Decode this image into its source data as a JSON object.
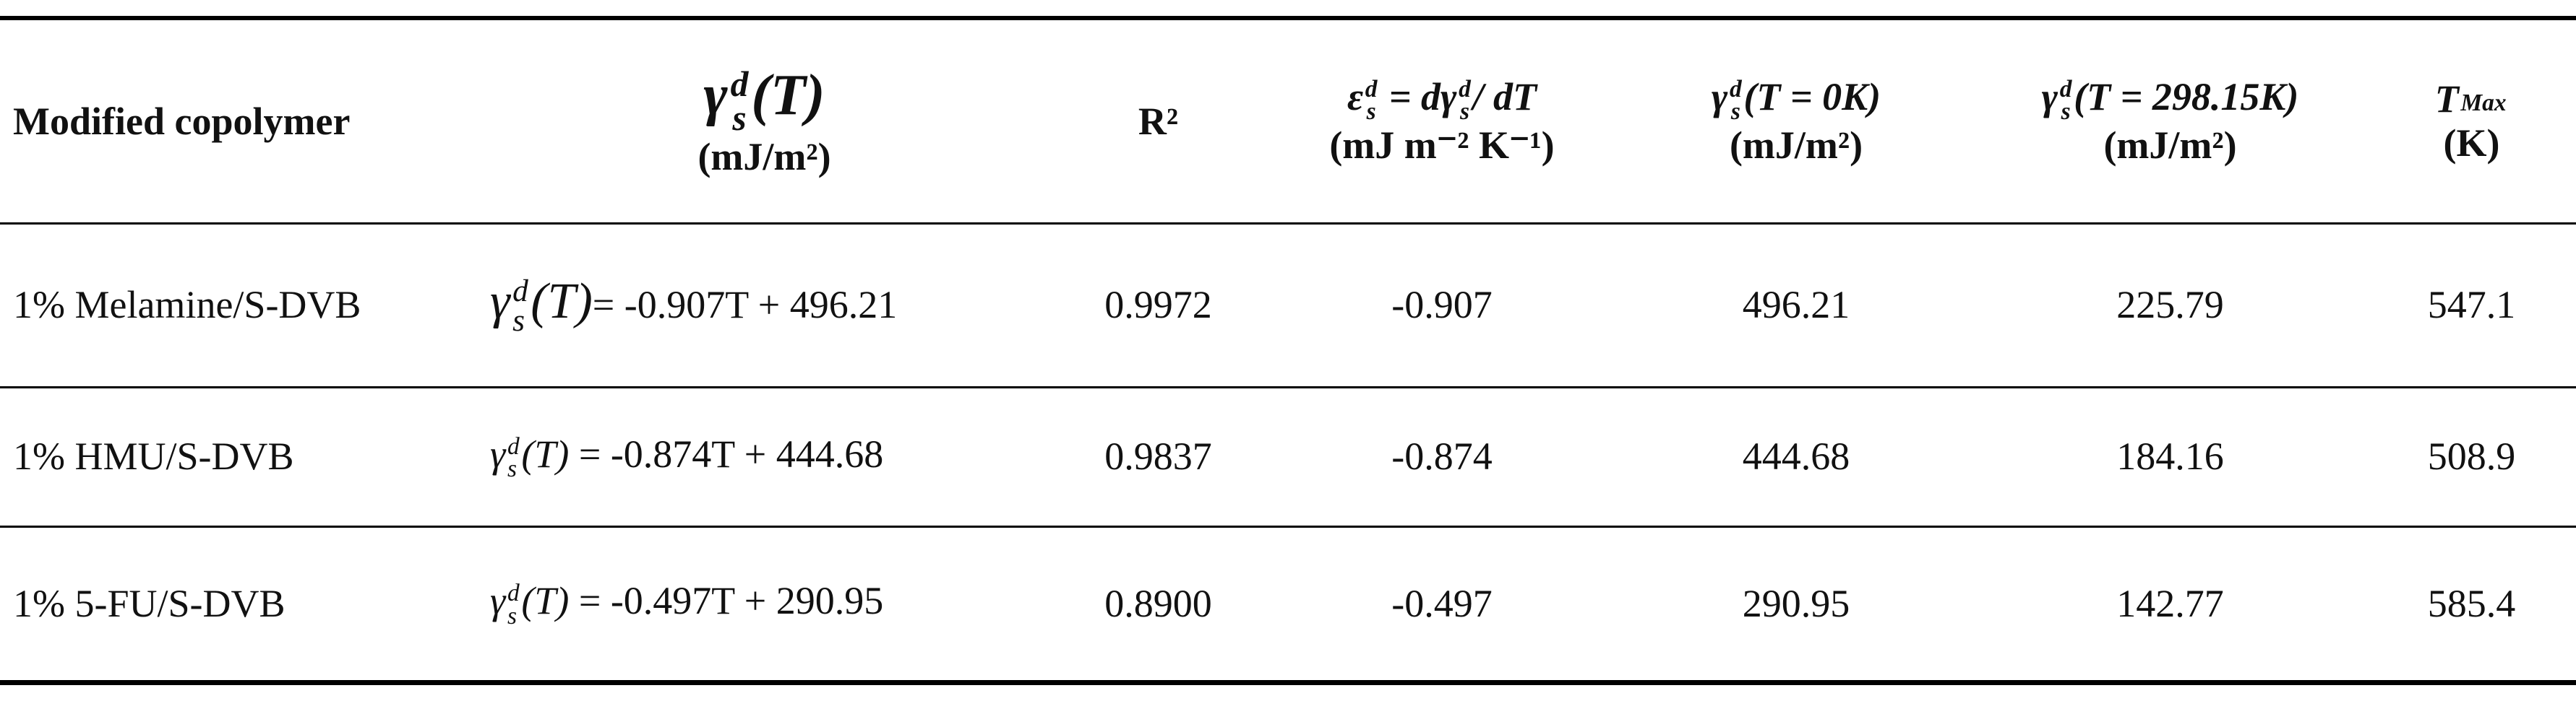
{
  "table": {
    "header": [
      {
        "text": "Modified copolymer"
      },
      {
        "symbol": "γ",
        "sup": "d",
        "sub": "s",
        "arg": "(T)",
        "unit": "(mJ/m²)"
      },
      {
        "text": "R²"
      },
      {
        "symbol": "ε",
        "sup": "d",
        "sub": "s",
        "arg": " = dγ",
        "sup2": "d",
        "sub2": "s",
        "arg2": "/ dT",
        "unit": "(mJ m⁻² K⁻¹)"
      },
      {
        "symbol": "γ",
        "sup": "d",
        "sub": "s",
        "arg": "(T = 0K)",
        "unit": "(mJ/m²)"
      },
      {
        "symbol": "γ",
        "sup": "d",
        "sub": "s",
        "arg": "(T = 298.15K)",
        "unit": "(mJ/m²)"
      },
      {
        "symbol": "T",
        "sub": "Max",
        "unit": "(K)"
      }
    ],
    "rows": [
      {
        "copolymer": "1% Melamine/S-DVB",
        "equation": {
          "symbol": "γ",
          "sup": "d",
          "sub": "s",
          "arg": "(T)",
          "rhs": "= -0.907T + 496.21"
        },
        "r2": "0.9972",
        "slope": "-0.907",
        "intercept": "496.21",
        "energy_298": "225.79",
        "t_max": "547.1"
      },
      {
        "copolymer": "1% HMU/S-DVB",
        "equation": {
          "symbol": "γ",
          "sup": "d",
          "sub": "s",
          "arg": "(T)",
          "rhs": " = -0.874T + 444.68"
        },
        "r2": "0.9837",
        "slope": "-0.874",
        "intercept": "444.68",
        "energy_298": "184.16",
        "t_max": "508.9"
      },
      {
        "copolymer": "1% 5-FU/S-DVB",
        "equation": {
          "symbol": "γ",
          "sup": "d",
          "sub": "s",
          "arg": "(T)",
          "rhs": " = -0.497T + 290.95"
        },
        "r2": "0.8900",
        "slope": "-0.497",
        "intercept": "290.95",
        "energy_298": "142.77",
        "t_max": "585.4"
      }
    ]
  }
}
